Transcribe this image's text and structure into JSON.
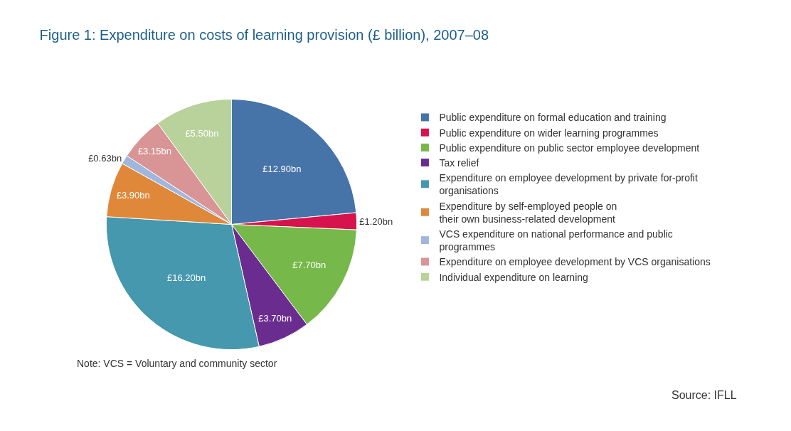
{
  "chart_data": {
    "type": "pie",
    "title": "Figure 1: Expenditure on costs of learning provision (£ billion), 2007–08",
    "categories": [
      "Public expenditure on formal education and training",
      "Public expenditure on wider learning programmes",
      "Public expenditure on public sector employee development",
      "Tax relief",
      "Expenditure on employee development by private for-profit\norganisations",
      "Expenditure by self-employed people on\ntheir own business-related development",
      "VCS expenditure on national performance and public\nprogrammes",
      "Expenditure on employee development by VCS organisations",
      "Individual expenditure on learning"
    ],
    "values": [
      12.9,
      1.2,
      7.7,
      3.7,
      16.2,
      3.9,
      0.63,
      3.15,
      5.5
    ],
    "value_labels": [
      "£12.90bn",
      "£1.20bn",
      "£7.70bn",
      "£3.70bn",
      "£16.20bn",
      "£3.90bn",
      "£0.63bn",
      "£3.15bn",
      "£5.50bn"
    ],
    "colors": [
      "#4673a8",
      "#d6134c",
      "#76b84a",
      "#6a2d8f",
      "#4598ad",
      "#e0883a",
      "#9fb6dd",
      "#d99595",
      "#b9d19a"
    ],
    "legend": "right",
    "annotations": [
      "Note: VCS = Voluntary and community sector",
      "Source: IFLL"
    ]
  }
}
